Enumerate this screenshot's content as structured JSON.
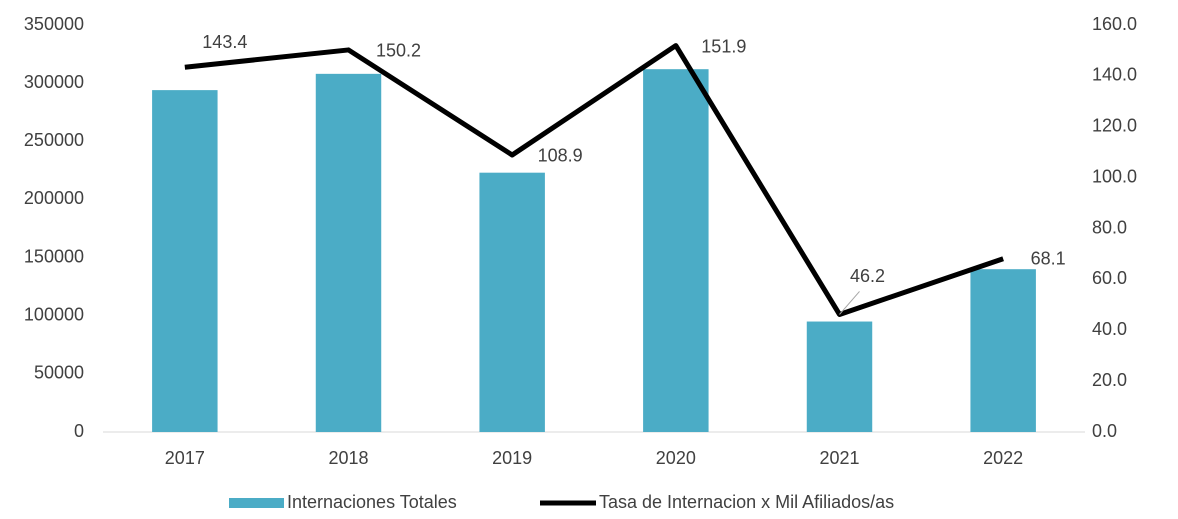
{
  "chart_data": {
    "type": "combo",
    "categories": [
      "2017",
      "2018",
      "2019",
      "2020",
      "2021",
      "2022"
    ],
    "series": [
      {
        "name": "Internaciones Totales",
        "type": "bar",
        "color": "#4bacc6",
        "values": [
          294000,
          308000,
          223000,
          312000,
          95000,
          140000
        ]
      },
      {
        "name": "Tasa de Internacion x Mil Afiliados/as",
        "type": "line",
        "axis": "y2",
        "color": "#000000",
        "values": [
          143.4,
          150.2,
          108.9,
          151.9,
          46.2,
          68.1
        ]
      }
    ],
    "ylim": [
      0,
      350000
    ],
    "yticks": [
      0,
      50000,
      100000,
      150000,
      200000,
      250000,
      300000,
      350000
    ],
    "y2lim": [
      0,
      160
    ],
    "y2ticks": [
      {
        "value": 0,
        "label": "0.0"
      },
      {
        "value": 20,
        "label": "20.0"
      },
      {
        "value": 40,
        "label": "40.0"
      },
      {
        "value": 60,
        "label": "60.0"
      },
      {
        "value": 80,
        "label": "80.0"
      },
      {
        "value": 100,
        "label": "100.0"
      },
      {
        "value": 120,
        "label": "120.0"
      },
      {
        "value": 140,
        "label": "140.0"
      },
      {
        "value": 160,
        "label": "160.0"
      }
    ],
    "legend": "bottom"
  }
}
